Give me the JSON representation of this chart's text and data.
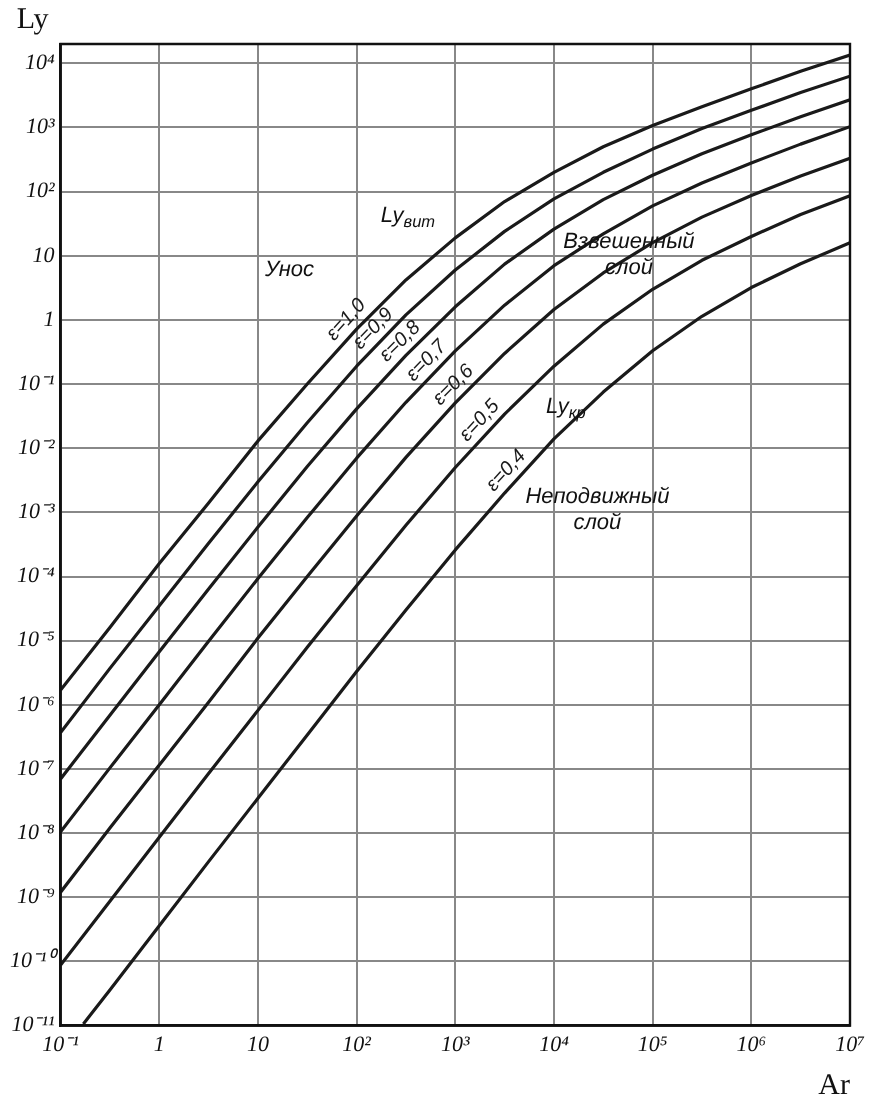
{
  "chart_data": {
    "type": "line",
    "xlabel": "Ar",
    "ylabel": "Ly",
    "log": "xy",
    "grid": true,
    "legend": false,
    "xlim": [
      0.1,
      10000000
    ],
    "ylim": [
      1e-11,
      20000
    ],
    "xticks": [
      {
        "value": 0.1,
        "label": "10⁻¹"
      },
      1,
      10,
      {
        "value": 100,
        "label": "10²"
      },
      {
        "value": 1000,
        "label": "10³"
      },
      {
        "value": 10000,
        "label": "10⁴"
      },
      {
        "value": 100000,
        "label": "10⁵"
      },
      {
        "value": 1000000,
        "label": "10⁶"
      },
      {
        "value": 10000000,
        "label": "10⁷"
      }
    ],
    "yticks": [
      {
        "value": 1e-11,
        "label": "10⁻¹¹"
      },
      {
        "value": 1e-10,
        "label": "10⁻¹⁰"
      },
      {
        "value": 1e-09,
        "label": "10⁻⁹"
      },
      {
        "value": 1e-08,
        "label": "10⁻⁸"
      },
      {
        "value": 1e-07,
        "label": "10⁻⁷"
      },
      {
        "value": 1e-06,
        "label": "10⁻⁶"
      },
      {
        "value": 1e-05,
        "label": "10⁻⁵"
      },
      {
        "value": 0.0001,
        "label": "10⁻⁴"
      },
      {
        "value": 0.001,
        "label": "10⁻³"
      },
      {
        "value": 0.01,
        "label": "10⁻²"
      },
      {
        "value": 0.1,
        "label": "10⁻¹"
      },
      1,
      10,
      {
        "value": 100,
        "label": "10²"
      },
      {
        "value": 1000,
        "label": "10³"
      },
      {
        "value": 10000,
        "label": "10⁴"
      }
    ],
    "x": [
      0.1,
      0.316,
      1,
      3.16,
      10,
      31.6,
      100,
      316,
      1000,
      3160,
      10000,
      31600,
      100000,
      316000,
      1000000,
      3160000,
      10000000
    ],
    "series": [
      {
        "name": "ε=1,0",
        "color": "#1a1a1a",
        "values": [
          1.7e-06,
          1.6e-05,
          0.00016,
          0.0014,
          0.013,
          0.1,
          0.72,
          4.2,
          19,
          70,
          200,
          500,
          1070,
          2100,
          4000,
          7500,
          13500
        ]
      },
      {
        "name": "ε=0,9",
        "color": "#1a1a1a",
        "values": [
          3.7e-07,
          3.7e-06,
          3.5e-05,
          0.00033,
          0.003,
          0.025,
          0.19,
          1.2,
          6.0,
          24,
          77,
          200,
          460,
          960,
          1850,
          3500,
          6300
        ]
      },
      {
        "name": "ε=0,8",
        "color": "#1a1a1a",
        "values": [
          7e-08,
          6.9e-07,
          6.7e-06,
          6.4e-05,
          0.00059,
          0.0052,
          0.041,
          0.28,
          1.6,
          7.4,
          26,
          75,
          180,
          390,
          770,
          1470,
          2700
        ]
      },
      {
        "name": "ε=0,7",
        "color": "#1a1a1a",
        "values": [
          1.05e-08,
          1.04e-07,
          1e-06,
          9.8e-06,
          9.3e-05,
          0.00083,
          0.007,
          0.052,
          0.33,
          1.7,
          7.0,
          22,
          60,
          136,
          280,
          550,
          1030
        ]
      },
      {
        "name": "ε=0,6",
        "color": "#1a1a1a",
        "values": [
          1.2e-09,
          1.2e-08,
          1.15e-07,
          1.1e-06,
          1.1e-05,
          0.0001,
          0.00088,
          0.0072,
          0.051,
          0.3,
          1.45,
          5.4,
          16,
          40,
          87,
          175,
          330
        ]
      },
      {
        "name": "ε=0,5",
        "color": "#1a1a1a",
        "values": [
          8.8e-11,
          8.7e-10,
          8.6e-09,
          8.5e-08,
          8.2e-07,
          7.9e-06,
          7.2e-05,
          0.00063,
          0.005,
          0.034,
          0.19,
          0.86,
          3.0,
          8.5,
          20,
          44,
          86
        ]
      },
      {
        "name": "ε=0,4",
        "color": "#1a1a1a",
        "x": [
          0.17,
          0.316,
          1,
          3.16,
          10,
          31.6,
          100,
          316,
          1000,
          3160,
          10000,
          31600,
          100000,
          316000,
          1000000,
          3160000,
          10000000
        ],
        "values": [
          1.06e-11,
          3.6e-11,
          3.6e-10,
          3.6e-09,
          3.5e-08,
          3.4e-07,
          3.3e-06,
          3e-05,
          0.00026,
          0.002,
          0.014,
          0.075,
          0.33,
          1.14,
          3.2,
          7.5,
          16
        ]
      }
    ],
    "annotations": [
      "Унос",
      "Ly$_{вит}$",
      "Взвешенный слой",
      "Ly$_{кр}$",
      "Неподвижный слой"
    ]
  }
}
